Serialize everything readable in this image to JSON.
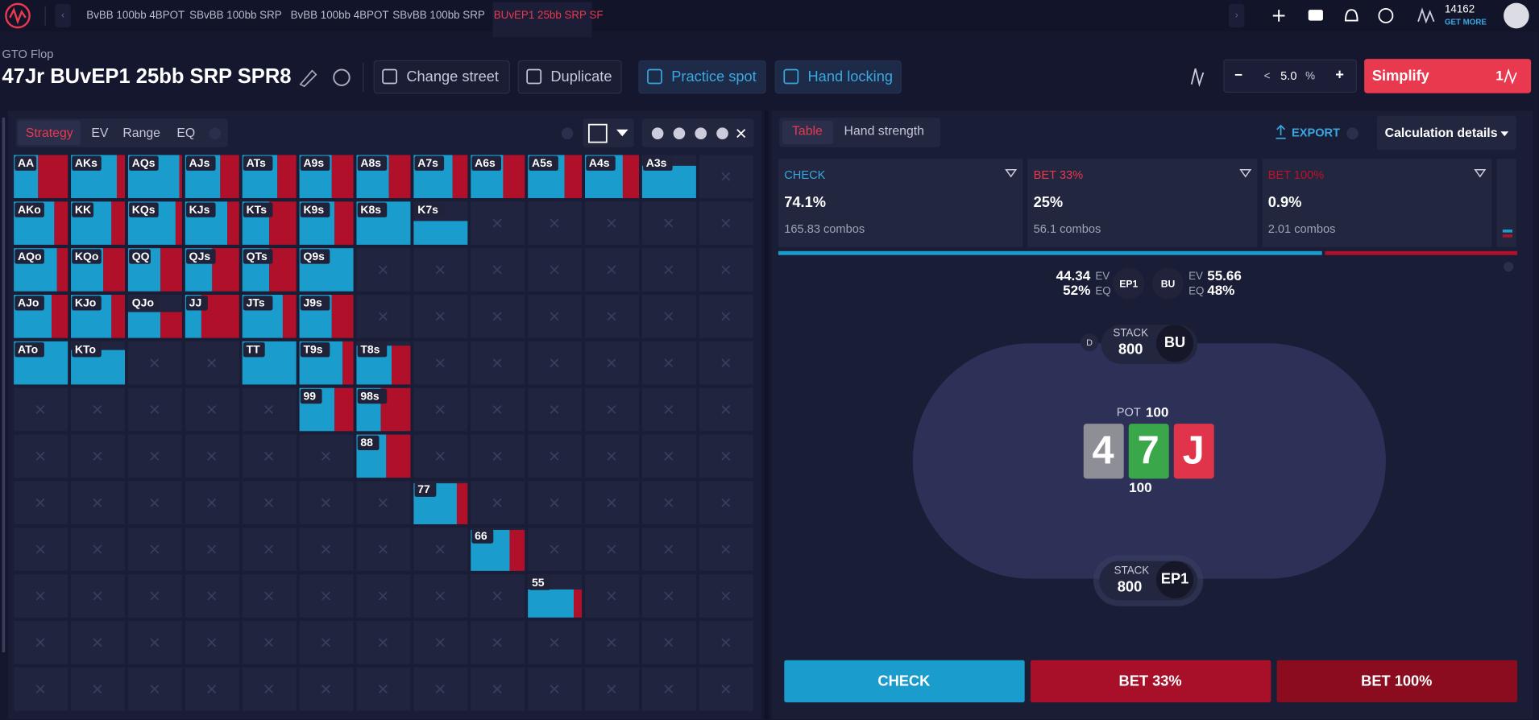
{
  "nav": {
    "tabs": [
      "BvBB 100bb 4BPOT",
      "SBvBB 100bb SRP",
      "BvBB 100bb 4BPOT",
      "SBvBB 100bb SRP",
      "BUvEP1 25bb SRP SF"
    ],
    "credits": "14162",
    "get_more": "GET MORE"
  },
  "header": {
    "overline": "GTO Flop",
    "title": "47Jr BUvEP1 25bb SRP SPR8",
    "buttons": [
      "Change street",
      "Duplicate",
      "Practice spot",
      "Hand locking"
    ],
    "step": {
      "minus": "−",
      "prev": "<",
      "value": "5.0",
      "unit": "%",
      "plus": "+"
    },
    "simplify": "Simplify",
    "simplify_count": "1"
  },
  "left": {
    "tabs": [
      "Strategy",
      "EV",
      "Range",
      "EQ"
    ],
    "grid": [
      [
        {
          "hand": "AA",
          "weight": 1,
          "check": 0.45
        },
        {
          "hand": "AKs",
          "weight": 1,
          "check": 0.85
        },
        {
          "hand": "AQs",
          "weight": 1,
          "check": 0.95
        },
        {
          "hand": "AJs",
          "weight": 1,
          "check": 0.65
        },
        {
          "hand": "ATs",
          "weight": 1,
          "check": 0.65
        },
        {
          "hand": "A9s",
          "weight": 1,
          "check": 0.6
        },
        {
          "hand": "A8s",
          "weight": 1,
          "check": 0.6
        },
        {
          "hand": "A7s",
          "weight": 1,
          "check": 0.72
        },
        {
          "hand": "A6s",
          "weight": 1,
          "check": 0.6
        },
        {
          "hand": "A5s",
          "weight": 1,
          "check": 0.68
        },
        {
          "hand": "A4s",
          "weight": 1,
          "check": 0.7
        },
        {
          "hand": "A3s",
          "weight": 0.75,
          "check": 1
        },
        null
      ],
      [
        {
          "hand": "AKo",
          "weight": 1,
          "check": 0.75
        },
        {
          "hand": "KK",
          "weight": 1,
          "check": 0.75
        },
        {
          "hand": "KQs",
          "weight": 1,
          "check": 0.88
        },
        {
          "hand": "KJs",
          "weight": 1,
          "check": 0.78
        },
        {
          "hand": "KTs",
          "weight": 1,
          "check": 0.5
        },
        {
          "hand": "K9s",
          "weight": 1,
          "check": 0.65
        },
        {
          "hand": "K8s",
          "weight": 1,
          "check": 1
        },
        {
          "hand": "K7s",
          "weight": 0.55,
          "check": 1
        },
        null,
        null,
        null,
        null,
        null
      ],
      [
        {
          "hand": "AQo",
          "weight": 1,
          "check": 0.8
        },
        {
          "hand": "KQo",
          "weight": 1,
          "check": 0.6
        },
        {
          "hand": "QQ",
          "weight": 1,
          "check": 0.6
        },
        {
          "hand": "QJs",
          "weight": 1,
          "check": 0.5
        },
        {
          "hand": "QTs",
          "weight": 1,
          "check": 0.5
        },
        {
          "hand": "Q9s",
          "weight": 1,
          "check": 1
        },
        null,
        null,
        null,
        null,
        null,
        null,
        null
      ],
      [
        {
          "hand": "AJo",
          "weight": 1,
          "check": 0.7
        },
        {
          "hand": "KJo",
          "weight": 1,
          "check": 0.75
        },
        {
          "hand": "QJo",
          "weight": 0.6,
          "check": 0.6
        },
        {
          "hand": "JJ",
          "weight": 1,
          "check": 0.3
        },
        {
          "hand": "JTs",
          "weight": 1,
          "check": 0.75
        },
        {
          "hand": "J9s",
          "weight": 1,
          "check": 0.6
        },
        null,
        null,
        null,
        null,
        null,
        null,
        null
      ],
      [
        {
          "hand": "ATo",
          "weight": 1,
          "check": 1
        },
        {
          "hand": "KTo",
          "weight": 0.8,
          "check": 1
        },
        null,
        null,
        {
          "hand": "TT",
          "weight": 1,
          "check": 1
        },
        {
          "hand": "T9s",
          "weight": 1,
          "check": 0.8
        },
        {
          "hand": "T8s",
          "weight": 0.9,
          "check": 0.65
        },
        null,
        null,
        null,
        null,
        null,
        null
      ],
      [
        null,
        null,
        null,
        null,
        null,
        {
          "hand": "99",
          "weight": 1,
          "check": 0.65
        },
        {
          "hand": "98s",
          "weight": 1,
          "check": 0.45
        },
        null,
        null,
        null,
        null,
        null,
        null
      ],
      [
        null,
        null,
        null,
        null,
        null,
        null,
        {
          "hand": "88",
          "weight": 1,
          "check": 0.55
        },
        null,
        null,
        null,
        null,
        null,
        null
      ],
      [
        null,
        null,
        null,
        null,
        null,
        null,
        null,
        {
          "hand": "77",
          "weight": 0.95,
          "check": 0.8
        },
        null,
        null,
        null,
        null,
        null
      ],
      [
        null,
        null,
        null,
        null,
        null,
        null,
        null,
        null,
        {
          "hand": "66",
          "weight": 0.95,
          "check": 0.72
        },
        null,
        null,
        null,
        null
      ],
      [
        null,
        null,
        null,
        null,
        null,
        null,
        null,
        null,
        null,
        {
          "hand": "55",
          "weight": 0.65,
          "check": 0.85
        },
        null,
        null,
        null
      ],
      [
        null,
        null,
        null,
        null,
        null,
        null,
        null,
        null,
        null,
        null,
        null,
        null,
        null
      ],
      [
        null,
        null,
        null,
        null,
        null,
        null,
        null,
        null,
        null,
        null,
        null,
        null,
        null
      ]
    ]
  },
  "right": {
    "tabs": [
      "Table",
      "Hand strength"
    ],
    "export": "EXPORT",
    "calc": "Calculation details",
    "actions": [
      {
        "name": "CHECK",
        "freq": "74.1%",
        "combos": "165.83 combos"
      },
      {
        "name": "BET 33%",
        "freq": "25%",
        "combos": "56.1 combos"
      },
      {
        "name": "BET 100%",
        "freq": "0.9%",
        "combos": "2.01 combos"
      }
    ],
    "ep1": {
      "ev_value": "44.34",
      "ev": "EV",
      "eq_value": "52%",
      "eq": "EQ",
      "name": "EP1"
    },
    "bu": {
      "ev_value": "55.66",
      "ev": "EV",
      "eq_value": "48%",
      "eq": "EQ",
      "name": "BU"
    },
    "table": {
      "bu_stack_label": "STACK",
      "bu_stack": "800",
      "bu_seat": "BU",
      "dealer": "D",
      "pot_label": "POT",
      "pot": "100",
      "board": [
        "4",
        "7",
        "J"
      ],
      "board_pot": "100",
      "ep1_stack_label": "STACK",
      "ep1_stack": "800",
      "ep1_seat": "EP1"
    },
    "buttons": [
      "CHECK",
      "BET 33%",
      "BET 100%"
    ]
  }
}
